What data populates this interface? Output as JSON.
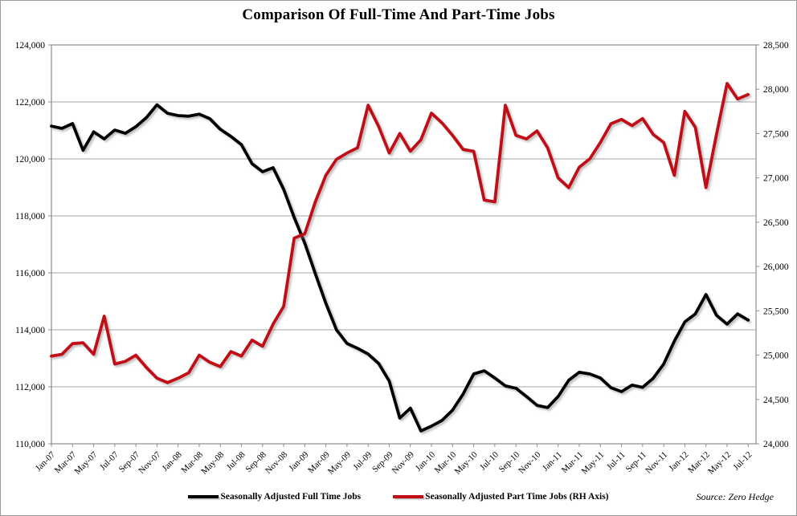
{
  "page": {
    "title": "Comparison Of Full-Time And Part-Time Jobs",
    "source": "Source: Zero Hedge"
  },
  "legend": {
    "items": [
      {
        "label": "Seasonally Adjusted Full Time Jobs",
        "color": "#000000"
      },
      {
        "label": "Seasonally Adjusted Part Time Jobs (RH Axis)",
        "color": "#C00D14"
      }
    ]
  },
  "chart_data": {
    "type": "line",
    "title": "Comparison Of Full-Time And Part-Time Jobs",
    "n_points": 67,
    "months_start": "Jan-07",
    "months_end": "Jul-12",
    "x_tick_labels": [
      "Jan-07",
      "Mar-07",
      "May-07",
      "Jul-07",
      "Sep-07",
      "Nov-07",
      "Jan-08",
      "Mar-08",
      "May-08",
      "Jul-08",
      "Sep-08",
      "Nov-08",
      "Jan-09",
      "Mar-09",
      "May-09",
      "Jul-09",
      "Sep-09",
      "Nov-09",
      "Jan-10",
      "Mar-10",
      "May-10",
      "Jul-10",
      "Sep-10",
      "Nov-10",
      "Jan-11",
      "Mar-11",
      "May-11",
      "Jul-11",
      "Sep-11",
      "Nov-11",
      "Jan-12",
      "Mar-12",
      "May-12",
      "Jul-12"
    ],
    "left_axis": {
      "min": 110000,
      "max": 124000,
      "step": 2000,
      "tick_labels": [
        "124,000",
        "122,000",
        "120,000",
        "118,000",
        "116,000",
        "114,000",
        "112,000",
        "110,000"
      ]
    },
    "right_axis": {
      "min": 24000,
      "max": 28500,
      "step": 500,
      "tick_labels": [
        "28,500",
        "28,000",
        "27,500",
        "27,000",
        "26,500",
        "26,000",
        "25,500",
        "25,000",
        "24,500",
        "24,000"
      ]
    },
    "grid": {
      "horizontal": true,
      "color": "#A6A6A6",
      "border_color": "#8C8C8C"
    },
    "legend_position": "bottom",
    "series": [
      {
        "name": "Seasonally Adjusted Full Time Jobs",
        "axis": "left",
        "color": "#000000",
        "values": [
          121150,
          121070,
          121240,
          120300,
          120950,
          120700,
          121010,
          120900,
          121130,
          121450,
          121900,
          121600,
          121520,
          121500,
          121570,
          121410,
          121040,
          120790,
          120500,
          119830,
          119550,
          119690,
          118930,
          117940,
          117040,
          115970,
          114930,
          114000,
          113520,
          113350,
          113150,
          112820,
          112200,
          110900,
          111250,
          110450,
          110620,
          110820,
          111180,
          111750,
          112450,
          112560,
          112310,
          112030,
          111950,
          111660,
          111350,
          111270,
          111660,
          112230,
          112510,
          112450,
          112310,
          111970,
          111830,
          112060,
          111980,
          112300,
          112800,
          113600,
          114280,
          114560,
          115240,
          114510,
          114200,
          114560,
          114340
        ]
      },
      {
        "name": "Seasonally Adjusted Part Time Jobs (RH Axis)",
        "axis": "right",
        "color": "#C00D14",
        "values": [
          24990,
          25010,
          25130,
          25140,
          25010,
          25440,
          24900,
          24930,
          25000,
          24860,
          24740,
          24690,
          24740,
          24800,
          25000,
          24920,
          24870,
          25040,
          24990,
          25170,
          25100,
          25350,
          25550,
          26320,
          26370,
          26730,
          27030,
          27210,
          27280,
          27340,
          27820,
          27580,
          27280,
          27500,
          27300,
          27430,
          27730,
          27620,
          27480,
          27320,
          27300,
          26750,
          26730,
          27820,
          27480,
          27440,
          27530,
          27340,
          27000,
          26890,
          27120,
          27215,
          27400,
          27610,
          27660,
          27590,
          27670,
          27490,
          27400,
          27030,
          27750,
          27570,
          26890,
          27490,
          28065,
          27890,
          27940
        ]
      }
    ]
  }
}
